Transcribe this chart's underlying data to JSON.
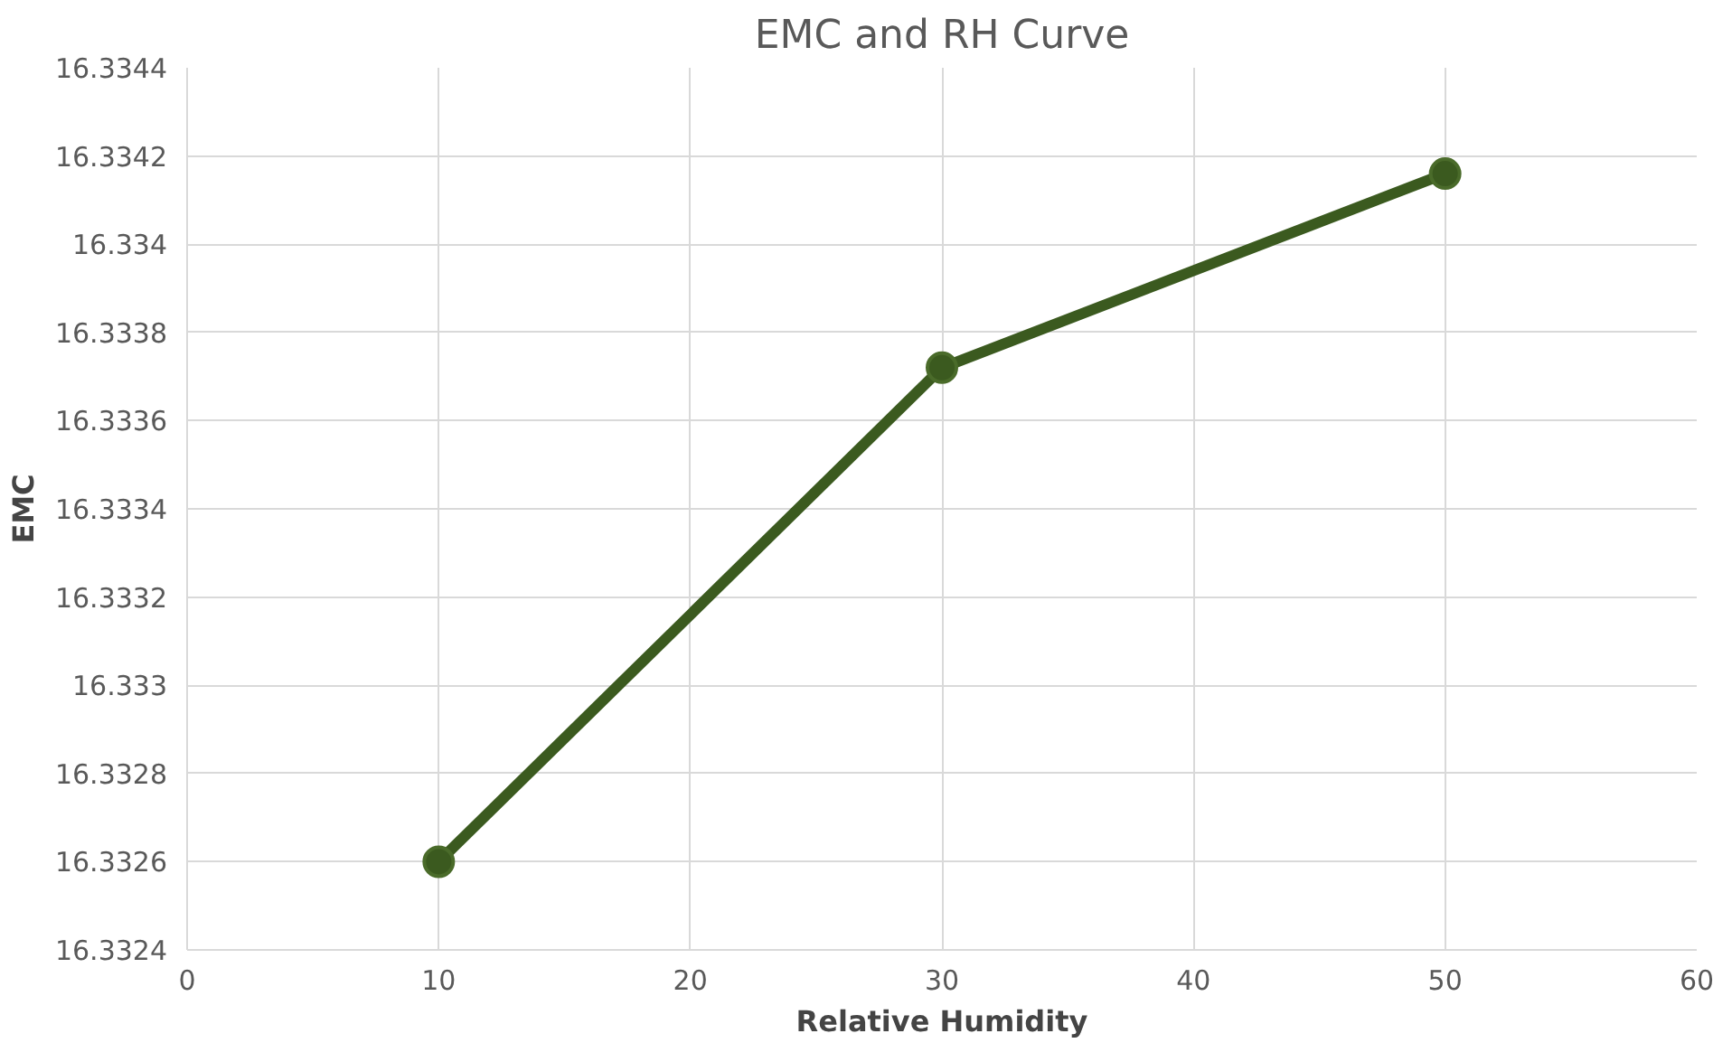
{
  "chart_data": {
    "type": "line",
    "title": "EMC and RH Curve",
    "xlabel": "Relative Humidity",
    "ylabel": "EMC",
    "x": [
      10,
      30,
      50
    ],
    "series": [
      {
        "color": "#3b5a1f",
        "values": [
          16.3326,
          16.33372,
          16.33416
        ]
      }
    ],
    "xlim": [
      0,
      60
    ],
    "xticks": [
      0,
      10,
      20,
      30,
      40,
      50,
      60
    ],
    "ylim": [
      16.3324,
      16.3344
    ],
    "yticks": [
      {
        "value": 16.3324,
        "label": "16.3324"
      },
      {
        "value": 16.3326,
        "label": "16.3326"
      },
      {
        "value": 16.3328,
        "label": "16.3328"
      },
      {
        "value": 16.333,
        "label": "16.333"
      },
      {
        "value": 16.3332,
        "label": "16.3332"
      },
      {
        "value": 16.3334,
        "label": "16.3334"
      },
      {
        "value": 16.3336,
        "label": "16.3336"
      },
      {
        "value": 16.3338,
        "label": "16.3338"
      },
      {
        "value": 16.334,
        "label": "16.334"
      },
      {
        "value": 16.3342,
        "label": "16.3342"
      },
      {
        "value": 16.3344,
        "label": "16.3344"
      }
    ],
    "grid": true,
    "marker": "circle",
    "line_style": "solid"
  }
}
